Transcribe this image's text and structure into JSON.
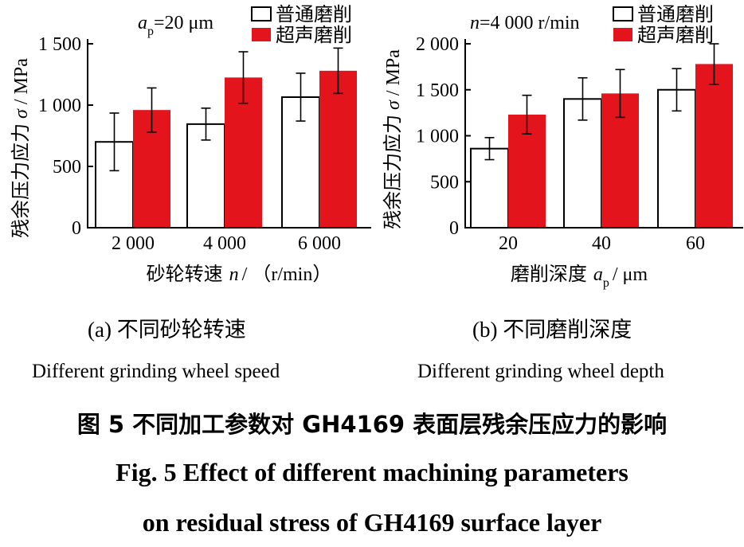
{
  "colors": {
    "ordinary": "#ffffff",
    "ultrasonic": "#e4141c",
    "axis": "#000000"
  },
  "charts": [
    {
      "id": "a",
      "param_prefix": "a",
      "param_sub": "p",
      "param_value": "=20 μm",
      "legend": [
        "普通磨削",
        "超声磨削"
      ],
      "ylabel_cn": "残余压力应力",
      "ylabel_sym": "σ",
      "ylabel_unit": "/ MPa",
      "xlabel_cn": "砂轮转速",
      "xlabel_sym": "n",
      "xlabel_unit": "/ （r/min）",
      "ytick_labels": [
        "0",
        "500",
        "1 000",
        "1 500"
      ],
      "categories": [
        "2 000",
        "4 000",
        "6 000"
      ],
      "caption_cn": "(a)  不同砂轮转速",
      "caption_en": "Different grinding wheel speed"
    },
    {
      "id": "b",
      "param_prefix": "n",
      "param_value": "=4 000 r/min",
      "legend": [
        "普通磨削",
        "超声磨削"
      ],
      "ylabel_cn": "残余压力应力",
      "ylabel_sym": "σ",
      "ylabel_unit": "/ MPa",
      "xlabel_cn": "磨削深度",
      "xlabel_sym": "a",
      "xlabel_sub": "p",
      "xlabel_unit": "/ μm",
      "ytick_labels": [
        "0",
        "500",
        "1 000",
        "1 500",
        "2 000"
      ],
      "categories": [
        "20",
        "40",
        "60"
      ],
      "caption_cn": "(b)  不同磨削深度",
      "caption_en": "Different grinding wheel depth"
    }
  ],
  "figure_caption": {
    "cn": "图 5    不同加工参数对 GH4169 表面层残余压应力的影响",
    "en_line1": "Fig. 5 Effect of different machining parameters",
    "en_line2": "on residual stress of GH4169 surface layer"
  },
  "chart_data": [
    {
      "type": "bar",
      "categories": [
        "2 000",
        "4 000",
        "6 000"
      ],
      "series": [
        {
          "name": "普通磨削",
          "values": [
            700,
            845,
            1065
          ],
          "errors": [
            235,
            130,
            195
          ]
        },
        {
          "name": "超声磨削",
          "values": [
            960,
            1225,
            1280
          ],
          "errors": [
            180,
            210,
            185
          ]
        }
      ],
      "ylim": [
        0,
        1500
      ],
      "yticks": [
        0,
        500,
        1000,
        1500
      ]
    },
    {
      "type": "bar",
      "categories": [
        "20",
        "40",
        "60"
      ],
      "series": [
        {
          "name": "普通磨削",
          "values": [
            860,
            1400,
            1500
          ],
          "errors": [
            120,
            230,
            230
          ]
        },
        {
          "name": "超声磨削",
          "values": [
            1230,
            1460,
            1780
          ],
          "errors": [
            210,
            260,
            220
          ]
        }
      ],
      "ylim": [
        0,
        2000
      ],
      "yticks": [
        0,
        500,
        1000,
        1500,
        2000
      ]
    }
  ]
}
